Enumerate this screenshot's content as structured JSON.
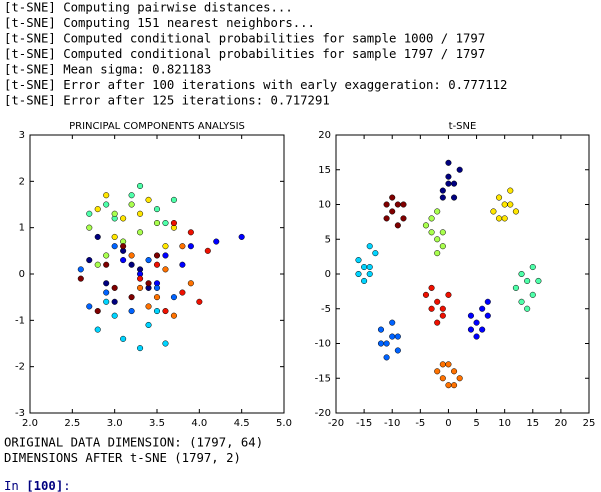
{
  "console": {
    "lines": [
      "[t-SNE] Computing pairwise distances...",
      "[t-SNE] Computing 151 nearest neighbors...",
      "[t-SNE] Computed conditional probabilities for sample 1000 / 1797",
      "[t-SNE] Computed conditional probabilities for sample 1797 / 1797",
      "[t-SNE] Mean sigma: 0.821183",
      "[t-SNE] Error after 100 iterations with early exaggeration: 0.777112",
      "[t-SNE] Error after 125 iterations: 0.717291"
    ]
  },
  "chart_data": [
    {
      "type": "scatter",
      "title": "PRINCIPAL COMPONENTS ANALYSIS",
      "xlim": [
        2,
        5
      ],
      "xticks": [
        {
          "value": 2,
          "label": "2.0"
        },
        {
          "value": 2.5,
          "label": "2.5"
        },
        {
          "value": 3,
          "label": "3.0"
        },
        {
          "value": 3.5,
          "label": "3.5"
        },
        {
          "value": 4,
          "label": "4.0"
        },
        {
          "value": 4.5,
          "label": "4.5"
        },
        {
          "value": 5,
          "label": "5.0"
        }
      ],
      "ylim": [
        -3,
        3
      ],
      "yticks": [
        -3,
        -2,
        -1,
        0,
        1,
        2,
        3
      ],
      "series": [
        {
          "color": "#00007f",
          "x": [
            2.7,
            2.9,
            3.1,
            3.3,
            3.0,
            2.8,
            3.4,
            3.2
          ],
          "y": [
            0.3,
            -0.2,
            0.5,
            0.1,
            -0.6,
            0.8,
            -0.3,
            0.2
          ]
        },
        {
          "color": "#0000ff",
          "x": [
            3.3,
            3.6,
            3.9,
            4.2,
            3.5,
            3.8,
            4.5,
            3.1
          ],
          "y": [
            0.0,
            0.4,
            0.6,
            0.7,
            -0.2,
            0.2,
            0.8,
            0.3
          ]
        },
        {
          "color": "#0063ff",
          "x": [
            2.6,
            2.9,
            3.2,
            3.5,
            3.0,
            2.7,
            3.4,
            3.7
          ],
          "y": [
            0.1,
            -0.4,
            -0.8,
            -0.3,
            0.6,
            -0.7,
            0.3,
            -0.5
          ]
        },
        {
          "color": "#00d4ff",
          "x": [
            2.8,
            3.1,
            3.4,
            3.6,
            3.0,
            3.3,
            2.9,
            3.5
          ],
          "y": [
            -1.2,
            -1.4,
            -1.1,
            -1.5,
            -0.9,
            -1.6,
            -0.6,
            -0.8
          ]
        },
        {
          "color": "#4effa9",
          "x": [
            2.9,
            3.2,
            3.5,
            3.7,
            3.3,
            3.0,
            3.6,
            2.7
          ],
          "y": [
            1.5,
            1.7,
            1.4,
            1.6,
            1.9,
            1.2,
            1.1,
            1.3
          ]
        },
        {
          "color": "#a9ff4e",
          "x": [
            2.7,
            3.0,
            3.3,
            2.9,
            3.2,
            3.5,
            2.8,
            3.1
          ],
          "y": [
            1.0,
            1.3,
            0.9,
            0.4,
            1.5,
            1.1,
            0.2,
            0.7
          ]
        },
        {
          "color": "#ffe600",
          "x": [
            2.8,
            3.1,
            3.4,
            3.7,
            3.0,
            3.3,
            3.6,
            2.9
          ],
          "y": [
            1.4,
            1.2,
            1.6,
            1.0,
            0.8,
            1.3,
            0.6,
            1.7
          ]
        },
        {
          "color": "#ff7200",
          "x": [
            3.3,
            3.6,
            3.9,
            3.4,
            3.7,
            3.2,
            3.8,
            3.5
          ],
          "y": [
            -0.3,
            0.1,
            -0.2,
            -0.7,
            -0.9,
            0.4,
            0.6,
            -0.5
          ]
        },
        {
          "color": "#ee1000",
          "x": [
            3.5,
            3.8,
            4.1,
            3.6,
            3.9,
            3.3,
            4.0,
            3.7
          ],
          "y": [
            0.2,
            -0.4,
            0.5,
            -0.8,
            0.9,
            -0.1,
            -0.6,
            1.1
          ]
        },
        {
          "color": "#7f0000",
          "x": [
            2.6,
            2.9,
            3.2,
            3.5,
            2.8,
            3.1,
            3.4,
            3.0
          ],
          "y": [
            -0.1,
            0.2,
            -0.5,
            0.4,
            -0.8,
            0.6,
            -0.2,
            -0.3
          ]
        }
      ]
    },
    {
      "type": "scatter",
      "title": "t-SNE",
      "xlim": [
        -20,
        25
      ],
      "xticks": [
        -20,
        -15,
        -10,
        -5,
        0,
        5,
        10,
        15,
        20,
        25
      ],
      "ylim": [
        -20,
        20
      ],
      "yticks": [
        -20,
        -15,
        -10,
        -5,
        0,
        5,
        10,
        15,
        20
      ],
      "series": [
        {
          "color": "#00007f",
          "x": [
            -1,
            0,
            1,
            2,
            0,
            -1,
            1,
            0
          ],
          "y": [
            12,
            14,
            13,
            15,
            16,
            11,
            11,
            13
          ]
        },
        {
          "color": "#0000ff",
          "x": [
            4,
            5,
            6,
            7,
            5,
            4,
            6,
            7
          ],
          "y": [
            -6,
            -7,
            -8,
            -6,
            -9,
            -8,
            -5,
            -4
          ]
        },
        {
          "color": "#0063ff",
          "x": [
            -12,
            -11,
            -10,
            -9,
            -11,
            -10,
            -12,
            -9
          ],
          "y": [
            -8,
            -10,
            -9,
            -11,
            -12,
            -7,
            -10,
            -9
          ]
        },
        {
          "color": "#00d4ff",
          "x": [
            -16,
            -15,
            -14,
            -13,
            -15,
            -16,
            -14,
            -14
          ],
          "y": [
            2,
            1,
            0,
            3,
            -1,
            0,
            1,
            4
          ]
        },
        {
          "color": "#4effa9",
          "x": [
            12,
            13,
            14,
            15,
            16,
            14,
            13,
            15
          ],
          "y": [
            -2,
            -4,
            -1,
            -3,
            -1,
            -5,
            0,
            1
          ]
        },
        {
          "color": "#a9ff4e",
          "x": [
            -4,
            -3,
            -2,
            -1,
            -3,
            -2,
            -1,
            -2
          ],
          "y": [
            7,
            6,
            5,
            4,
            8,
            9,
            6,
            3
          ]
        },
        {
          "color": "#ffe600",
          "x": [
            8,
            9,
            10,
            11,
            12,
            9,
            10,
            11
          ],
          "y": [
            9,
            11,
            10,
            12,
            9,
            8,
            8,
            10
          ]
        },
        {
          "color": "#ff7200",
          "x": [
            -2,
            -1,
            0,
            1,
            2,
            -1,
            0,
            1
          ],
          "y": [
            -14,
            -15,
            -16,
            -14,
            -15,
            -13,
            -13,
            -16
          ]
        },
        {
          "color": "#ee1000",
          "x": [
            -4,
            -3,
            -2,
            -1,
            0,
            -3,
            -1,
            -2
          ],
          "y": [
            -3,
            -5,
            -4,
            -6,
            -3,
            -2,
            -5,
            -7
          ]
        },
        {
          "color": "#7f0000",
          "x": [
            -11,
            -10,
            -9,
            -8,
            -10,
            -9,
            -11,
            -8
          ],
          "y": [
            8,
            9,
            10,
            8,
            11,
            7,
            10,
            10
          ]
        }
      ]
    }
  ],
  "output": {
    "lines": [
      "ORIGINAL DATA DIMENSION: (1797, 64)",
      "DIMENSIONS AFTER t-SNE (1797, 2)"
    ]
  },
  "prompt": {
    "label": "In",
    "count": "[100]",
    "end": ":"
  }
}
